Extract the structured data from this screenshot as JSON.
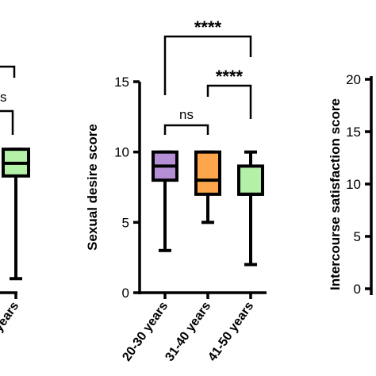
{
  "chart_data": [
    {
      "type": "box",
      "ylabel": "",
      "ylim": [
        0,
        15
      ],
      "yticks": [],
      "categories": [
        "years"
      ],
      "boxes": [
        {
          "category": "years",
          "min": 1,
          "q1": 8.3,
          "median": 9.2,
          "q3": 10.2,
          "max": 10.2,
          "color": "#b4f0a8"
        }
      ],
      "annotations": [
        "s"
      ]
    },
    {
      "type": "box",
      "ylabel": "Sexual desire score",
      "ylim": [
        0,
        15
      ],
      "yticks": [
        "0",
        "5",
        "10",
        "15"
      ],
      "categories": [
        "20-30 years",
        "31-40 years",
        "41-50 years"
      ],
      "boxes": [
        {
          "category": "20-30 years",
          "min": 3,
          "q1": 8,
          "median": 9,
          "q3": 10,
          "max": 10,
          "color": "#b58fd6"
        },
        {
          "category": "31-40 years",
          "min": 5,
          "q1": 7,
          "median": 8,
          "q3": 10,
          "max": 10,
          "color": "#ffa64d"
        },
        {
          "category": "41-50 years",
          "min": 2,
          "q1": 7,
          "median": 7,
          "q3": 9,
          "max": 10,
          "color": "#b4f0a8"
        }
      ],
      "annotations": [
        {
          "from": "20-30 years",
          "to": "31-40 years",
          "label": "ns"
        },
        {
          "from": "31-40 years",
          "to": "41-50 years",
          "label": "****"
        },
        {
          "from": "20-30 years",
          "to": "41-50 years",
          "label": "****"
        }
      ]
    },
    {
      "type": "box",
      "ylabel": "Intercourse satisfaction score",
      "yticks": [
        "0",
        "5",
        "10",
        "15",
        "20"
      ],
      "categories": [],
      "boxes": []
    }
  ]
}
